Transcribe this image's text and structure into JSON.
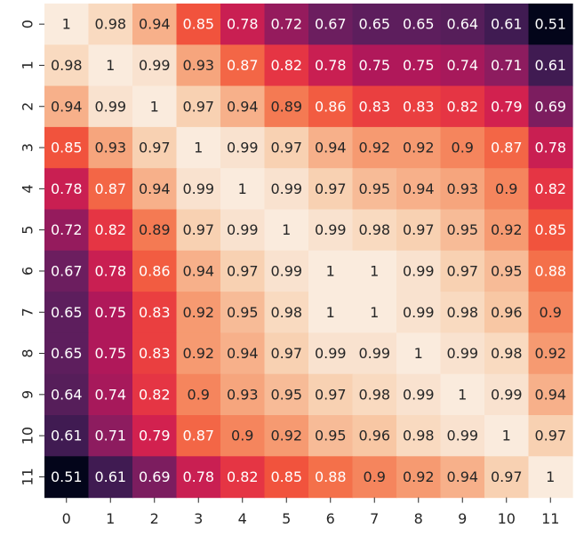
{
  "chart_data": {
    "type": "heatmap",
    "title": "",
    "xlabel": "",
    "ylabel": "",
    "x_categories": [
      "0",
      "1",
      "2",
      "3",
      "4",
      "5",
      "6",
      "7",
      "8",
      "9",
      "10",
      "11"
    ],
    "y_categories": [
      "0",
      "1",
      "2",
      "3",
      "4",
      "5",
      "6",
      "7",
      "8",
      "9",
      "10",
      "11"
    ],
    "values": [
      [
        1,
        0.98,
        0.94,
        0.85,
        0.78,
        0.72,
        0.67,
        0.65,
        0.65,
        0.64,
        0.61,
        0.51
      ],
      [
        0.98,
        1,
        0.99,
        0.93,
        0.87,
        0.82,
        0.78,
        0.75,
        0.75,
        0.74,
        0.71,
        0.61
      ],
      [
        0.94,
        0.99,
        1,
        0.97,
        0.94,
        0.89,
        0.86,
        0.83,
        0.83,
        0.82,
        0.79,
        0.69
      ],
      [
        0.85,
        0.93,
        0.97,
        1,
        0.99,
        0.97,
        0.94,
        0.92,
        0.92,
        0.9,
        0.87,
        0.78
      ],
      [
        0.78,
        0.87,
        0.94,
        0.99,
        1,
        0.99,
        0.97,
        0.95,
        0.94,
        0.93,
        0.9,
        0.82
      ],
      [
        0.72,
        0.82,
        0.89,
        0.97,
        0.99,
        1,
        0.99,
        0.98,
        0.97,
        0.95,
        0.92,
        0.85
      ],
      [
        0.67,
        0.78,
        0.86,
        0.94,
        0.97,
        0.99,
        1,
        1,
        0.99,
        0.97,
        0.95,
        0.88
      ],
      [
        0.65,
        0.75,
        0.83,
        0.92,
        0.95,
        0.98,
        1,
        1,
        0.99,
        0.98,
        0.96,
        0.9
      ],
      [
        0.65,
        0.75,
        0.83,
        0.92,
        0.94,
        0.97,
        0.99,
        0.99,
        1,
        0.99,
        0.98,
        0.92
      ],
      [
        0.64,
        0.74,
        0.82,
        0.9,
        0.93,
        0.95,
        0.97,
        0.98,
        0.99,
        1,
        0.99,
        0.94
      ],
      [
        0.61,
        0.71,
        0.79,
        0.87,
        0.9,
        0.92,
        0.95,
        0.96,
        0.98,
        0.99,
        1,
        0.97
      ],
      [
        0.51,
        0.61,
        0.69,
        0.78,
        0.82,
        0.85,
        0.88,
        0.9,
        0.92,
        0.94,
        0.97,
        1
      ]
    ],
    "value_range": [
      0.51,
      1
    ],
    "colormap": "rocket",
    "annotations": true,
    "grid": false,
    "legend": "none",
    "colors": {
      "light_text": "#ffffff",
      "dark_text": "#262626",
      "tick_color": "#262626"
    }
  }
}
